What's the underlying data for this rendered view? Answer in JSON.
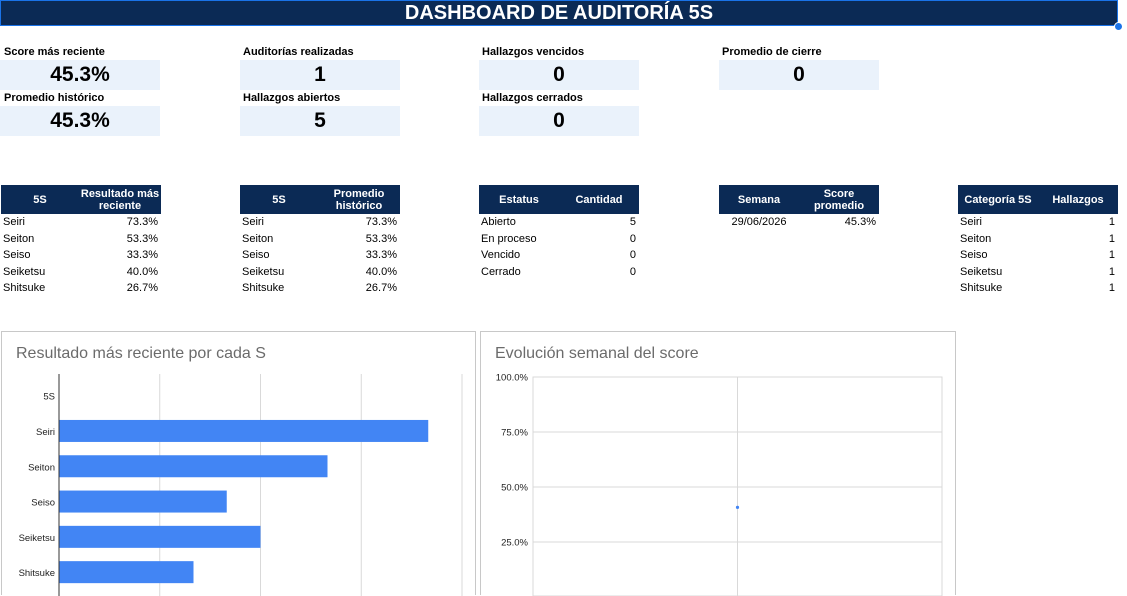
{
  "header": {
    "title": "DASHBOARD DE AUDITORÍA 5S"
  },
  "kpis": {
    "score_reciente": {
      "label": "Score más reciente",
      "value": "45.3%"
    },
    "promedio_historico": {
      "label": "Promedio histórico",
      "value": "45.3%"
    },
    "auditorias": {
      "label": "Auditorías realizadas",
      "value": "1"
    },
    "hallazgos_abiertos": {
      "label": "Hallazgos abiertos",
      "value": "5"
    },
    "hallazgos_vencidos": {
      "label": "Hallazgos vencidos",
      "value": "0"
    },
    "hallazgos_cerrados": {
      "label": "Hallazgos cerrados",
      "value": "0"
    },
    "promedio_cierre": {
      "label": "Promedio de cierre",
      "value": "0"
    }
  },
  "table_reciente": {
    "headers": [
      "5S",
      "Resultado más reciente"
    ],
    "rows": [
      [
        "Seiri",
        "73.3%"
      ],
      [
        "Seiton",
        "53.3%"
      ],
      [
        "Seiso",
        "33.3%"
      ],
      [
        "Seiketsu",
        "40.0%"
      ],
      [
        "Shitsuke",
        "26.7%"
      ]
    ]
  },
  "table_historico": {
    "headers": [
      "5S",
      "Promedio histórico"
    ],
    "rows": [
      [
        "Seiri",
        "73.3%"
      ],
      [
        "Seiton",
        "53.3%"
      ],
      [
        "Seiso",
        "33.3%"
      ],
      [
        "Seiketsu",
        "40.0%"
      ],
      [
        "Shitsuke",
        "26.7%"
      ]
    ]
  },
  "table_estatus": {
    "headers": [
      "Estatus",
      "Cantidad"
    ],
    "rows": [
      [
        "Abierto",
        "5"
      ],
      [
        "En proceso",
        "0"
      ],
      [
        "Vencido",
        "0"
      ],
      [
        "Cerrado",
        "0"
      ]
    ]
  },
  "table_semana": {
    "headers": [
      "Semana",
      "Score promedio"
    ],
    "rows": [
      [
        "29/06/2026",
        "45.3%"
      ]
    ]
  },
  "table_categoria": {
    "headers": [
      "Categoría 5S",
      "Hallazgos"
    ],
    "rows": [
      [
        "Seiri",
        "1"
      ],
      [
        "Seiton",
        "1"
      ],
      [
        "Seiso",
        "1"
      ],
      [
        "Seiketsu",
        "1"
      ],
      [
        "Shitsuke",
        "1"
      ]
    ]
  },
  "chart_data": [
    {
      "type": "bar",
      "orientation": "horizontal",
      "title": "Resultado más reciente por cada S",
      "categories": [
        "5S",
        "Seiri",
        "Seiton",
        "Seiso",
        "Seiketsu",
        "Shitsuke"
      ],
      "values": [
        null,
        73.3,
        53.3,
        33.3,
        40.0,
        26.7
      ],
      "xlim": [
        0,
        80
      ],
      "grid": true,
      "color": "#4285f4"
    },
    {
      "type": "scatter",
      "title": "Evolución semanal del score",
      "x": [
        "29/06/2026"
      ],
      "y": [
        45.3
      ],
      "ylim": [
        0,
        100
      ],
      "yticks": [
        "100.0%",
        "75.0%",
        "50.0%",
        "25.0%"
      ],
      "grid": true,
      "color": "#4285f4"
    }
  ]
}
